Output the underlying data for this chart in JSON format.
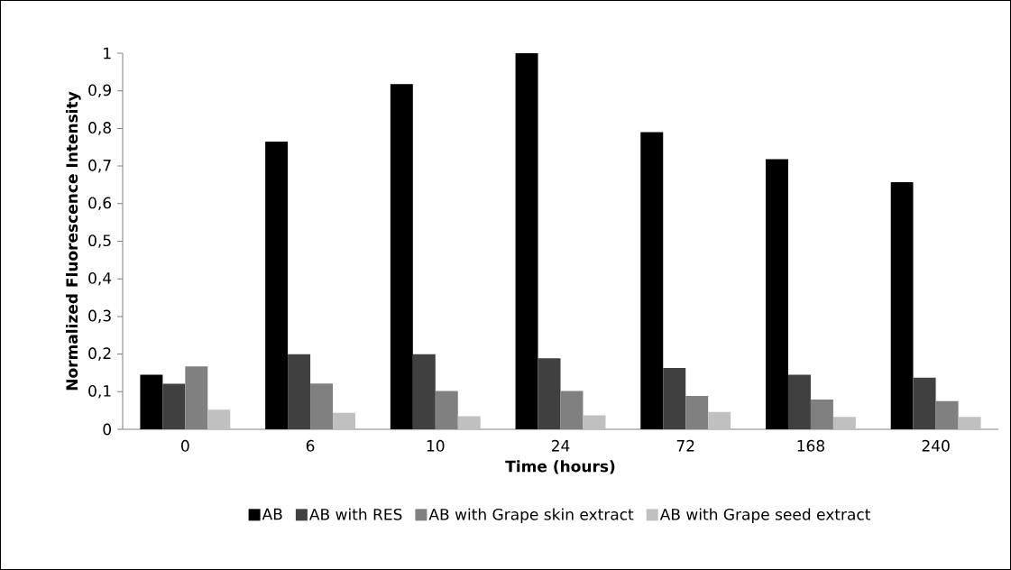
{
  "chart_data": {
    "type": "bar",
    "xlabel": "Time (hours)",
    "ylabel": "Normalized Fluorescence Intensity",
    "categories": [
      "0",
      "6",
      "10",
      "24",
      "72",
      "168",
      "240"
    ],
    "series": [
      {
        "name": "AB",
        "color": "#000000",
        "values": [
          0.145,
          0.765,
          0.918,
          1.0,
          0.79,
          0.718,
          0.657
        ]
      },
      {
        "name": "AB with RES",
        "color": "#404040",
        "values": [
          0.121,
          0.2,
          0.2,
          0.189,
          0.163,
          0.145,
          0.137
        ]
      },
      {
        "name": "AB with Grape skin extract",
        "color": "#808080",
        "values": [
          0.167,
          0.122,
          0.102,
          0.102,
          0.089,
          0.079,
          0.075
        ]
      },
      {
        "name": "AB with Grape seed extract",
        "color": "#c0c0c0",
        "values": [
          0.052,
          0.044,
          0.035,
          0.037,
          0.046,
          0.033,
          0.033
        ]
      }
    ],
    "ylim": [
      0,
      1
    ],
    "yticks": [
      0,
      {
        "value": 0.1,
        "label": "0,1"
      },
      {
        "value": 0.2,
        "label": "0,2"
      },
      {
        "value": 0.3,
        "label": "0,3"
      },
      {
        "value": 0.4,
        "label": "0,4"
      },
      {
        "value": 0.5,
        "label": "0,5"
      },
      {
        "value": 0.6,
        "label": "0,6"
      },
      {
        "value": 0.7,
        "label": "0,7"
      },
      {
        "value": 0.8,
        "label": "0,8"
      },
      {
        "value": 0.9,
        "label": "0,9"
      },
      1
    ],
    "legend": "bottom",
    "grid": false
  }
}
